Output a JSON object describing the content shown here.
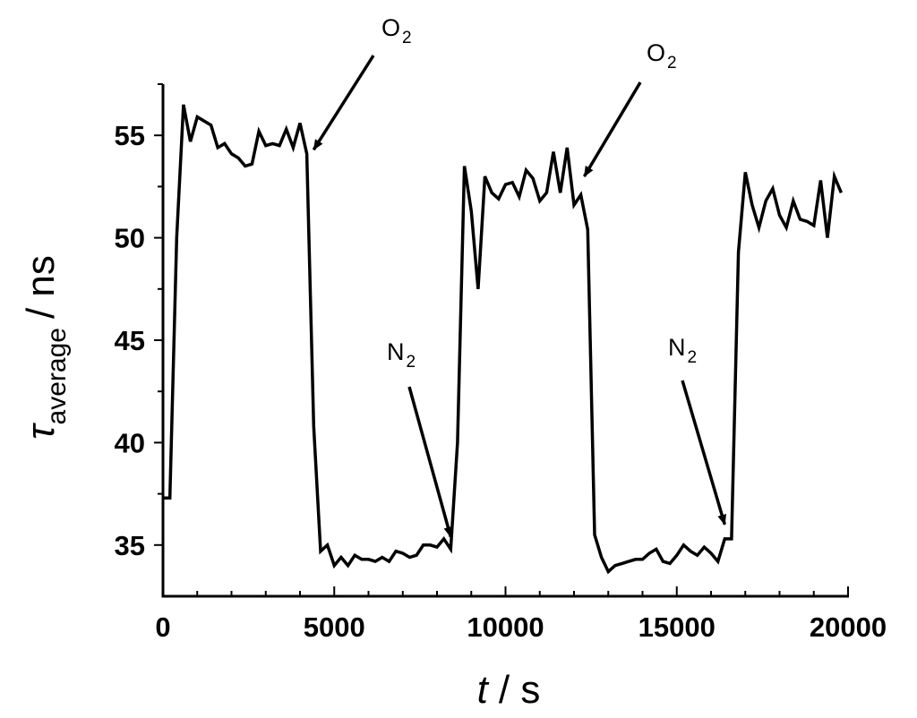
{
  "chart_data": {
    "type": "line",
    "xlabel": {
      "symbol": "t",
      "unit": "/ s"
    },
    "ylabel": {
      "symbol": "τ",
      "subscript": "average",
      "unit": "/ ns"
    },
    "xlim": [
      0,
      20000
    ],
    "ylim": [
      32.5,
      57.5
    ],
    "xticks": [
      0,
      5000,
      10000,
      15000,
      20000
    ],
    "yticks": [
      35,
      40,
      45,
      50,
      55
    ],
    "grid": false,
    "legend": "none",
    "line_color": "#000000",
    "series": [
      {
        "x": [
          0,
          200,
          400,
          600,
          800,
          1000,
          1400,
          1600,
          1800,
          2000,
          2200,
          2400,
          2600,
          2800,
          3000,
          3200,
          3400,
          3600,
          3800,
          4000,
          4200,
          4400,
          4600,
          4800,
          5000,
          5200,
          5400,
          5600,
          5800,
          6000,
          6200,
          6400,
          6600,
          6800,
          7000,
          7200,
          7400,
          7600,
          7800,
          8000,
          8200,
          8400,
          8600,
          8800,
          9000,
          9200,
          9400,
          9600,
          9800,
          10000,
          10200,
          10400,
          10600,
          10800,
          11000,
          11200,
          11400,
          11600,
          11800,
          12000,
          12200,
          12400,
          12600,
          12800,
          13000,
          13200,
          13400,
          13600,
          13800,
          14000,
          14200,
          14400,
          14600,
          14800,
          15000,
          15200,
          15400,
          15600,
          15800,
          16000,
          16200,
          16400,
          16600,
          16800,
          17000,
          17200,
          17400,
          17600,
          17800,
          18000,
          18200,
          18400,
          18600,
          18800,
          19000,
          19200,
          19400,
          19600,
          19800
        ],
        "y": [
          37.3,
          37.3,
          50.0,
          56.5,
          54.7,
          55.9,
          55.5,
          54.4,
          54.6,
          54.1,
          53.9,
          53.5,
          53.6,
          55.2,
          54.5,
          54.6,
          54.5,
          55.3,
          54.4,
          55.6,
          54.1,
          40.8,
          34.7,
          35.0,
          34.0,
          34.4,
          34.0,
          34.5,
          34.3,
          34.3,
          34.2,
          34.4,
          34.2,
          34.7,
          34.6,
          34.4,
          34.5,
          35.0,
          35.0,
          34.9,
          35.3,
          34.8,
          40.0,
          53.5,
          51.3,
          47.5,
          53.0,
          52.2,
          51.9,
          52.6,
          52.7,
          52.0,
          53.3,
          52.9,
          51.8,
          52.2,
          54.2,
          52.2,
          54.4,
          51.6,
          52.1,
          50.4,
          35.5,
          34.4,
          33.7,
          34.0,
          34.1,
          34.2,
          34.3,
          34.3,
          34.6,
          34.8,
          34.2,
          34.1,
          34.5,
          35.0,
          34.7,
          34.5,
          34.9,
          34.6,
          34.2,
          35.3,
          35.3,
          49.3,
          53.2,
          51.6,
          50.5,
          51.8,
          52.4,
          51.1,
          50.5,
          51.8,
          50.9,
          50.8,
          50.6,
          52.8,
          50.0,
          53.0,
          52.2
        ]
      }
    ],
    "annotations": [
      {
        "label": "O",
        "subscript": "2",
        "target": [
          4400,
          54.3
        ]
      },
      {
        "label": "O",
        "subscript": "2",
        "target": [
          12300,
          53.0
        ]
      },
      {
        "label": "N",
        "subscript": "2",
        "target": [
          8400,
          35.4
        ]
      },
      {
        "label": "N",
        "subscript": "2",
        "target": [
          16400,
          36.0
        ]
      }
    ]
  }
}
